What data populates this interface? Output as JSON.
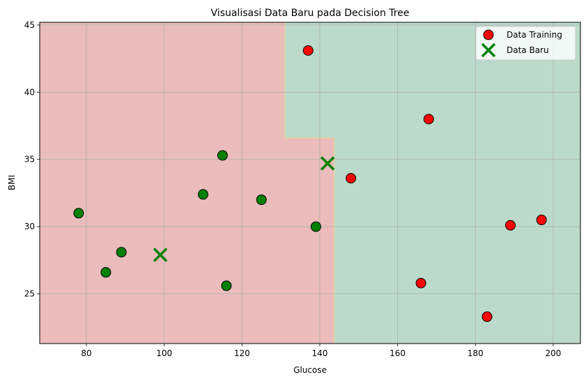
{
  "chart_data": {
    "type": "scatter",
    "title": "Visualisasi Data Baru pada Decision Tree",
    "xlabel": "Glucose",
    "ylabel": "BMI",
    "xlim": [
      68,
      207
    ],
    "ylim": [
      21.3,
      45.2
    ],
    "xticks": [
      80,
      100,
      120,
      140,
      160,
      180,
      200
    ],
    "yticks": [
      25,
      30,
      35,
      40,
      45
    ],
    "grid": true,
    "legend_position": "top-right",
    "legend": [
      {
        "label": "Data Training",
        "marker": "circle",
        "color": "#ff0000"
      },
      {
        "label": "Data Baru",
        "marker": "x",
        "color": "#008000"
      }
    ],
    "decision_regions": [
      {
        "class": "red",
        "color": "#ebbcbc",
        "polygon": [
          [
            68,
            21.3
          ],
          [
            143.7,
            21.3
          ],
          [
            143.7,
            36.6
          ],
          [
            131,
            36.6
          ],
          [
            131,
            45.2
          ],
          [
            68,
            45.2
          ]
        ]
      },
      {
        "class": "green",
        "color": "#bbdacb",
        "polygon": [
          [
            131,
            45.2
          ],
          [
            207,
            45.2
          ],
          [
            207,
            21.3
          ],
          [
            143.7,
            21.3
          ],
          [
            143.7,
            36.6
          ],
          [
            131,
            36.6
          ]
        ]
      }
    ],
    "series": [
      {
        "name": "Data Training",
        "marker": "circle",
        "points": [
          {
            "x": 78,
            "y": 31.0,
            "color": "#008000"
          },
          {
            "x": 85,
            "y": 26.6,
            "color": "#008000"
          },
          {
            "x": 89,
            "y": 28.1,
            "color": "#008000"
          },
          {
            "x": 110,
            "y": 32.4,
            "color": "#008000"
          },
          {
            "x": 115,
            "y": 35.3,
            "color": "#008000"
          },
          {
            "x": 116,
            "y": 25.6,
            "color": "#008000"
          },
          {
            "x": 125,
            "y": 32.0,
            "color": "#008000"
          },
          {
            "x": 139,
            "y": 30.0,
            "color": "#008000"
          },
          {
            "x": 137,
            "y": 43.1,
            "color": "#ff0000"
          },
          {
            "x": 148,
            "y": 33.6,
            "color": "#ff0000"
          },
          {
            "x": 166,
            "y": 25.8,
            "color": "#ff0000"
          },
          {
            "x": 168,
            "y": 38.0,
            "color": "#ff0000"
          },
          {
            "x": 183,
            "y": 23.3,
            "color": "#ff0000"
          },
          {
            "x": 189,
            "y": 30.1,
            "color": "#ff0000"
          },
          {
            "x": 197,
            "y": 30.5,
            "color": "#ff0000"
          }
        ]
      },
      {
        "name": "Data Baru",
        "marker": "x",
        "points": [
          {
            "x": 99,
            "y": 27.9,
            "color": "#008000"
          },
          {
            "x": 142,
            "y": 34.7,
            "color": "#008000"
          }
        ]
      }
    ]
  }
}
